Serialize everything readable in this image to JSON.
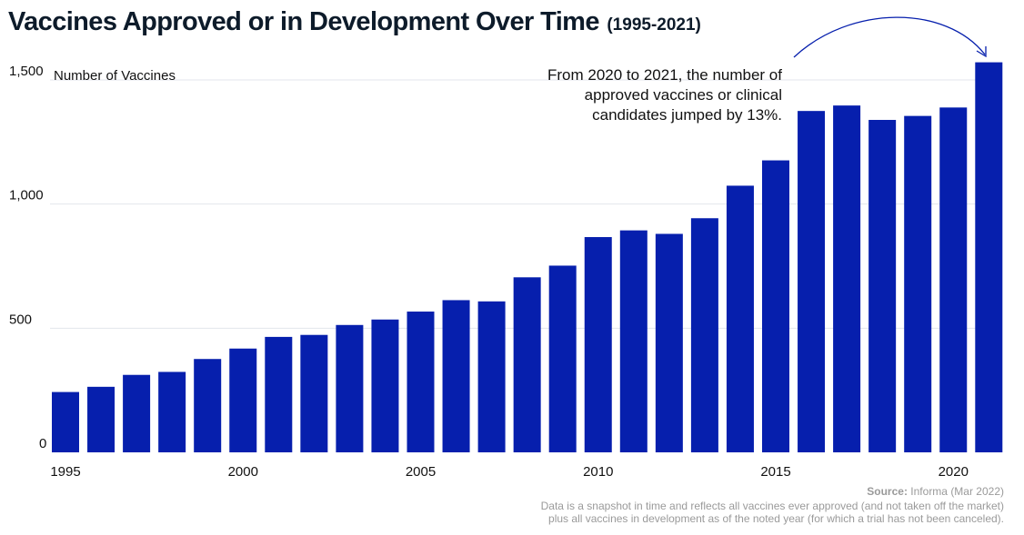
{
  "title": "Vaccines Approved or in Development Over Time",
  "subtitle": "(1995-2021)",
  "source_label": "Source:",
  "source_value": "Informa (Mar 2022)",
  "note_line1": "Data is a snapshot in time and reflects all vaccines ever approved (and not taken off the market)",
  "note_line2": "plus all vaccines in development as of the noted year (for which a trial has not been canceled).",
  "annotation": {
    "lines": [
      "From 2020 to 2021, the number of",
      "approved vaccines or clinical",
      "candidates jumped by 13%."
    ]
  },
  "colors": {
    "bar": "#061fad",
    "grid": "#e3e6ec",
    "arrow": "#061fad"
  },
  "chart_data": {
    "type": "bar",
    "title": "Vaccines Approved or in Development Over Time",
    "subtitle": "(1995-2021)",
    "ylabel": "Number of Vaccines",
    "xlabel": "",
    "ylim": [
      0,
      1500
    ],
    "yticks": [
      0,
      500,
      1000,
      1500
    ],
    "ytick_labels": [
      "0",
      "500",
      "1,000",
      "1,500"
    ],
    "xtick_labels": [
      "1995",
      "2000",
      "2005",
      "2010",
      "2015",
      "2020"
    ],
    "grid": true,
    "categories": [
      1995,
      1996,
      1997,
      1998,
      1999,
      2000,
      2001,
      2002,
      2003,
      2004,
      2005,
      2006,
      2007,
      2008,
      2009,
      2010,
      2011,
      2012,
      2013,
      2014,
      2015,
      2016,
      2017,
      2018,
      2019,
      2020,
      2021
    ],
    "values": [
      243,
      264,
      312,
      324,
      376,
      418,
      465,
      473,
      513,
      535,
      567,
      613,
      608,
      705,
      752,
      867,
      894,
      880,
      943,
      1074,
      1176,
      1375,
      1397,
      1339,
      1355,
      1389,
      1571
    ]
  }
}
